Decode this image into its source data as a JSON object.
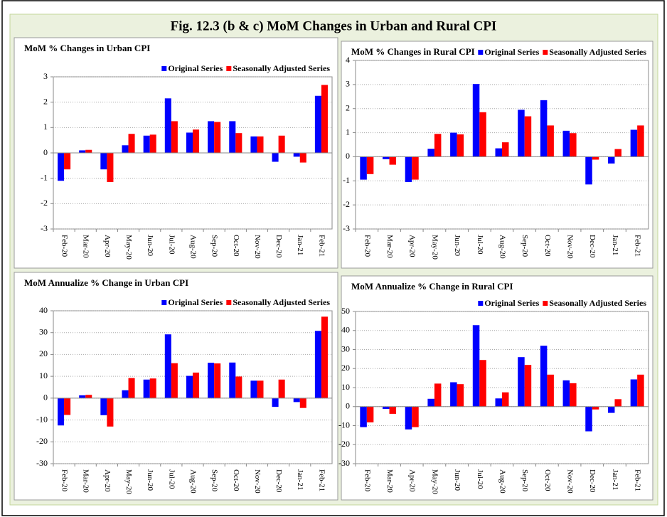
{
  "title": "Fig. 12.3 (b & c) MoM Changes in Urban and Rural CPI",
  "chart_data": [
    {
      "type": "bar",
      "title": "MoM % Changes in Urban CPI",
      "categories": [
        "Feb-20",
        "Mar-20",
        "Apr-20",
        "May-20",
        "Jun-20",
        "Jul-20",
        "Aug-20",
        "Sep-20",
        "Oct-20",
        "Nov-20",
        "Dec-20",
        "Jan-21",
        "Feb-21"
      ],
      "series": [
        {
          "name": "Original Series",
          "color": "#0000ff",
          "values": [
            -1.1,
            0.1,
            -0.65,
            0.3,
            0.68,
            2.15,
            0.8,
            1.25,
            1.25,
            0.65,
            -0.35,
            -0.15,
            2.25
          ]
        },
        {
          "name": "Seasonally Adjusted Series",
          "color": "#ff0000",
          "values": [
            -0.65,
            0.12,
            -1.15,
            0.75,
            0.72,
            1.25,
            0.92,
            1.22,
            0.78,
            0.65,
            0.68,
            -0.38,
            2.68
          ]
        }
      ],
      "ylim": [
        -3,
        3
      ],
      "yticks": [
        -3,
        -2,
        -1,
        0,
        1,
        2,
        3
      ],
      "grid": true,
      "legend": "top-right"
    },
    {
      "type": "bar",
      "title": "MoM % Changes in Rural CPI",
      "categories": [
        "Feb-20",
        "Mar-20",
        "Apr-20",
        "May-20",
        "Jun-20",
        "Jul-20",
        "Aug-20",
        "Sep-20",
        "Oct-20",
        "Nov-20",
        "Dec-20",
        "Jan-21",
        "Feb-21"
      ],
      "series": [
        {
          "name": "Original Series",
          "color": "#0000ff",
          "values": [
            -0.95,
            -0.1,
            -1.05,
            0.33,
            1.0,
            3.02,
            0.35,
            1.95,
            2.35,
            1.08,
            -1.15,
            -0.28,
            1.12
          ]
        },
        {
          "name": "Seasonally Adjusted Series",
          "color": "#ff0000",
          "values": [
            -0.72,
            -0.33,
            -0.95,
            0.95,
            0.93,
            1.85,
            0.6,
            1.68,
            1.3,
            0.98,
            -0.12,
            0.32,
            1.3
          ]
        }
      ],
      "ylim": [
        -3,
        4
      ],
      "yticks": [
        -3,
        -2,
        -1,
        0,
        1,
        2,
        3,
        4
      ],
      "grid": true,
      "legend": "top-right"
    },
    {
      "type": "bar",
      "title": "MoM Annualize % Change in Urban CPI",
      "categories": [
        "Feb-20",
        "Mar-20",
        "Apr-20",
        "May-20",
        "Jun-20",
        "Jul-20",
        "Aug-20",
        "Sep-20",
        "Oct-20",
        "Nov-20",
        "Dec-20",
        "Jan-21",
        "Feb-21"
      ],
      "series": [
        {
          "name": "Original Series",
          "color": "#0000ff",
          "values": [
            -12.5,
            1.3,
            -7.8,
            3.6,
            8.5,
            29.2,
            10.2,
            16.2,
            16.3,
            8.0,
            -4.0,
            -1.8,
            30.8
          ]
        },
        {
          "name": "Seasonally Adjusted Series",
          "color": "#ff0000",
          "values": [
            -7.7,
            1.5,
            -13.0,
            9.2,
            9.0,
            16.0,
            11.7,
            15.9,
            9.9,
            8.0,
            8.5,
            -4.5,
            37.3
          ]
        }
      ],
      "ylim": [
        -30,
        40
      ],
      "yticks": [
        -30,
        -20,
        -10,
        0,
        10,
        20,
        30,
        40
      ],
      "grid": true,
      "legend": "top-right"
    },
    {
      "type": "bar",
      "title": "MoM Annualize % Change in Rural CPI",
      "categories": [
        "Feb-20",
        "Mar-20",
        "Apr-20",
        "May-20",
        "Jun-20",
        "Jul-20",
        "Aug-20",
        "Sep-20",
        "Oct-20",
        "Nov-20",
        "Dec-20",
        "Jan-21",
        "Feb-21"
      ],
      "series": [
        {
          "name": "Original Series",
          "color": "#0000ff",
          "values": [
            -10.8,
            -1.2,
            -12.0,
            4.1,
            12.8,
            42.8,
            4.3,
            26.0,
            32.0,
            13.8,
            -13.0,
            -3.3,
            14.3
          ]
        },
        {
          "name": "Seasonally Adjusted Series",
          "color": "#ff0000",
          "values": [
            -8.3,
            -3.8,
            -10.8,
            12.1,
            11.8,
            24.5,
            7.5,
            21.9,
            16.8,
            12.3,
            -1.5,
            3.9,
            16.8
          ]
        }
      ],
      "ylim": [
        -30,
        50
      ],
      "yticks": [
        -30,
        -20,
        -10,
        0,
        10,
        20,
        30,
        40,
        50
      ],
      "grid": true,
      "legend": "top-right"
    }
  ]
}
